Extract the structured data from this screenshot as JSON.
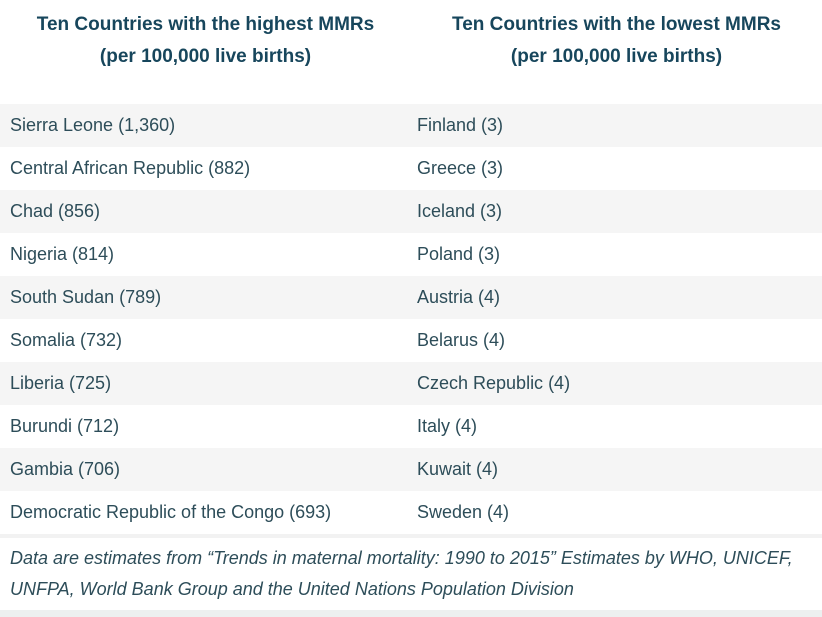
{
  "table": {
    "columns": [
      {
        "title": "Ten Countries with the highest MMRs",
        "subtitle": "(per 100,000 live births)"
      },
      {
        "title": "Ten Countries with the lowest MMRs",
        "subtitle": "(per 100,000 live births)"
      }
    ],
    "rows": [
      [
        "Sierra Leone (1,360)",
        "Finland (3)"
      ],
      [
        "Central African Republic (882)",
        "Greece (3)"
      ],
      [
        "Chad (856)",
        "Iceland (3)"
      ],
      [
        "Nigeria (814)",
        "Poland (3)"
      ],
      [
        "South Sudan (789)",
        "Austria (4)"
      ],
      [
        "Somalia (732)",
        "Belarus (4)"
      ],
      [
        "Liberia (725)",
        "Czech Republic (4)"
      ],
      [
        "Burundi (712)",
        "Italy (4)"
      ],
      [
        "Gambia (706)",
        "Kuwait (4)"
      ],
      [
        "Democratic Republic of the Congo (693)",
        "Sweden (4)"
      ]
    ],
    "footer": "Data are estimates from “Trends in maternal mortality: 1990 to 2015” Estimates by WHO, UNICEF, UNFPA, World Bank Group and the United Nations Population Division"
  },
  "colors": {
    "header_text": "#17465c",
    "body_text": "#2d4d59",
    "row_stripe": "#f5f5f5",
    "footer_divider": "#f2f2f2",
    "bottom_bar": "#edf0f0"
  }
}
